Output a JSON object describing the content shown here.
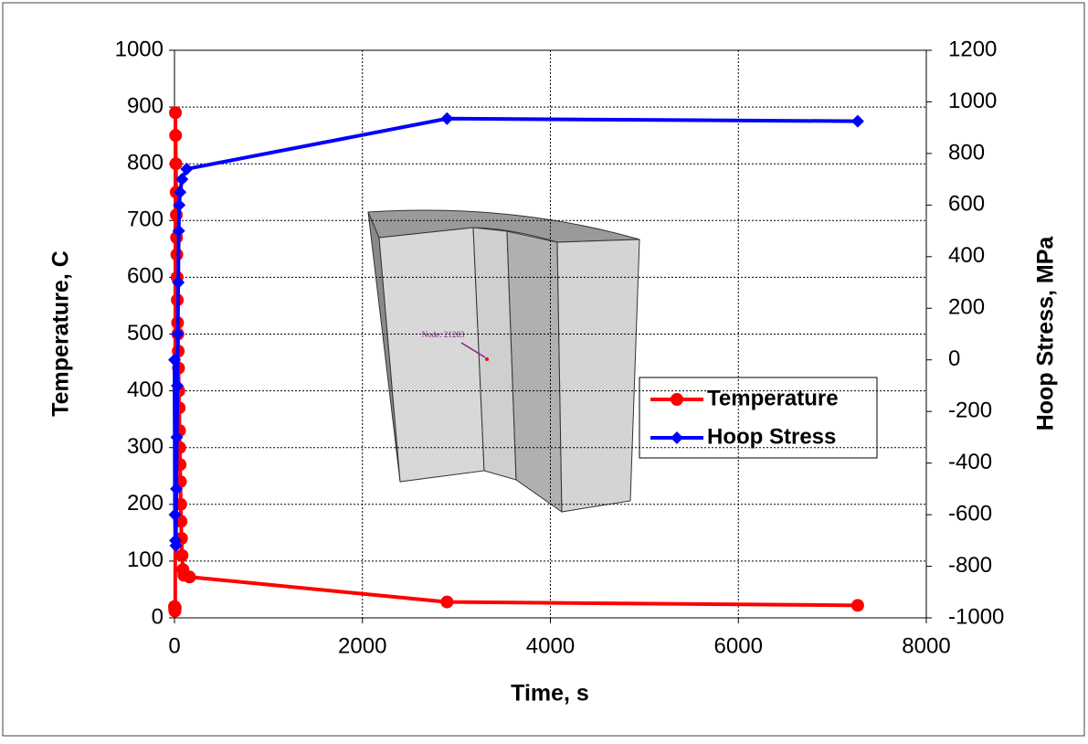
{
  "chart_data": {
    "type": "line",
    "xlabel": "Time, s",
    "ylabel": "Temperature, C",
    "y2label": "Hoop Stress, MPa",
    "annotation": "Node: 21283",
    "xlim": [
      0,
      8000
    ],
    "xticks": [
      0,
      2000,
      4000,
      6000,
      8000
    ],
    "ylim": [
      0,
      1000
    ],
    "yticks": [
      0,
      100,
      200,
      300,
      400,
      500,
      600,
      700,
      800,
      900,
      1000
    ],
    "y2lim": [
      -1000,
      1200
    ],
    "y2ticks": [
      -1000,
      -800,
      -600,
      -400,
      -200,
      0,
      200,
      400,
      600,
      800,
      1000,
      1200
    ],
    "grid": true,
    "legend": "right",
    "series": [
      {
        "name": "Temperature",
        "color": "#ff0000",
        "marker": "circle",
        "x": [
          0,
          2,
          5,
          8,
          10,
          12,
          15,
          18,
          20,
          22,
          25,
          28,
          30,
          33,
          36,
          40,
          43,
          46,
          50,
          53,
          56,
          60,
          63,
          66,
          70,
          75,
          80,
          90,
          100,
          160,
          2900,
          7270
        ],
        "values": [
          20,
          15,
          12,
          18,
          890,
          850,
          800,
          750,
          710,
          670,
          640,
          600,
          560,
          520,
          500,
          470,
          440,
          400,
          370,
          330,
          300,
          270,
          240,
          200,
          170,
          140,
          110,
          85,
          75,
          72,
          28,
          22
        ]
      },
      {
        "name": "Hoop Stress",
        "color": "#0000ff",
        "marker": "diamond",
        "axis": "y2",
        "x": [
          0,
          5,
          10,
          15,
          20,
          25,
          30,
          35,
          40,
          45,
          50,
          60,
          80,
          130,
          2900,
          7270
        ],
        "values": [
          0,
          -600,
          -700,
          -720,
          -500,
          -300,
          -100,
          100,
          300,
          500,
          600,
          650,
          700,
          740,
          935,
          925
        ]
      }
    ]
  }
}
